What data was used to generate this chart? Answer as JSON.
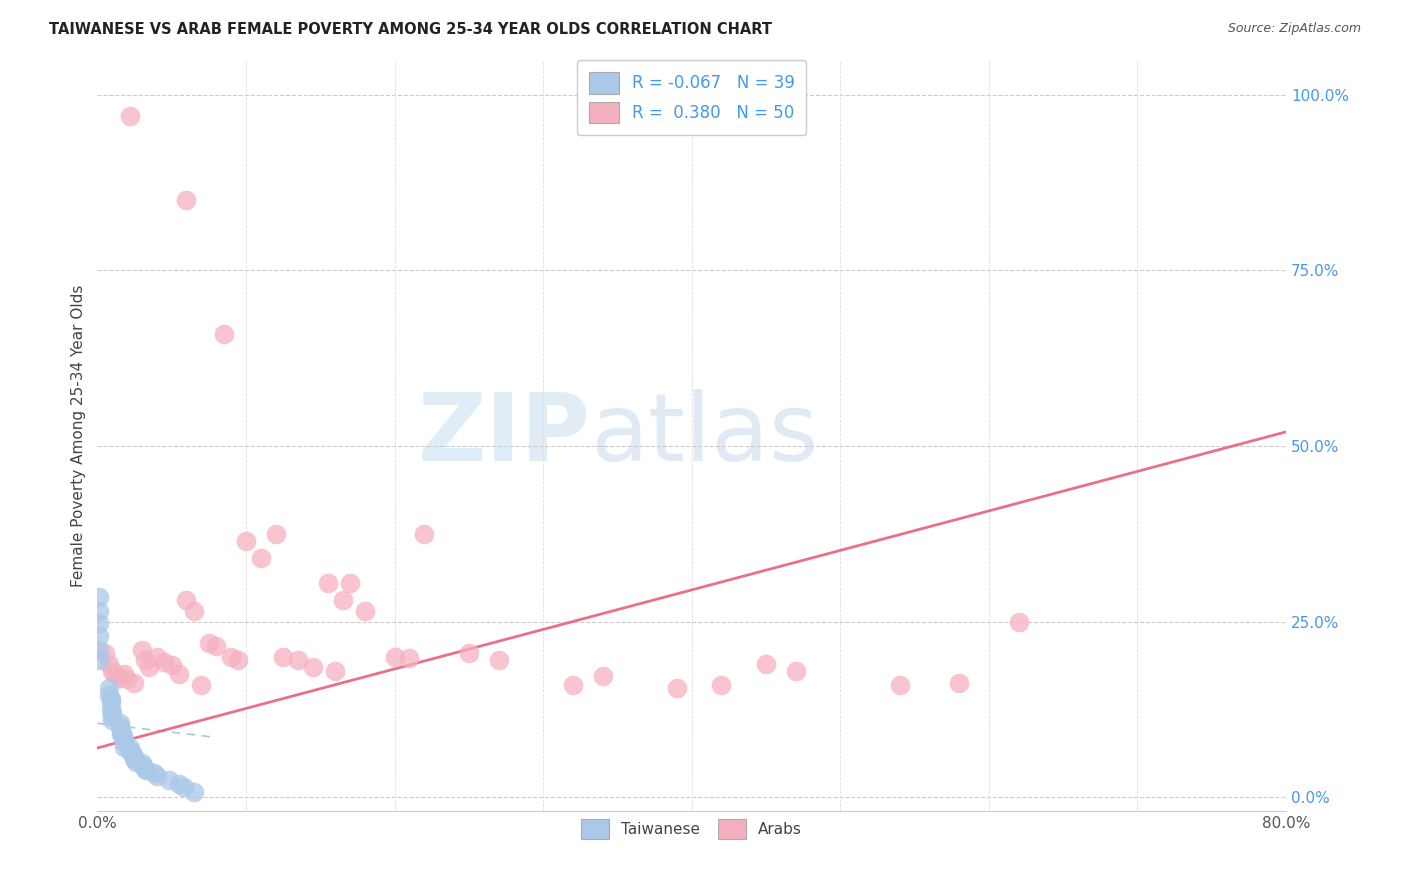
{
  "title": "TAIWANESE VS ARAB FEMALE POVERTY AMONG 25-34 YEAR OLDS CORRELATION CHART",
  "source": "Source: ZipAtlas.com",
  "ylabel": "Female Poverty Among 25-34 Year Olds",
  "xlim": [
    0.0,
    0.8
  ],
  "ylim": [
    -0.02,
    1.05
  ],
  "yticks_right": [
    0.0,
    0.25,
    0.5,
    0.75,
    1.0
  ],
  "yticklabels_right": [
    "0.0%",
    "25.0%",
    "50.0%",
    "75.0%",
    "100.0%"
  ],
  "watermark_zip": "ZIP",
  "watermark_atlas": "atlas",
  "taiwanese_R": -0.067,
  "taiwanese_N": 39,
  "arab_R": 0.38,
  "arab_N": 50,
  "taiwanese_color": "#aac8e8",
  "arab_color": "#f5b0c0",
  "taiwanese_line_color": "#99b8d8",
  "arab_line_color": "#e8607a",
  "legend_taiwanese_label": "Taiwanese",
  "legend_arab_label": "Arabs",
  "taiwanese_x": [
    0.001,
    0.001,
    0.001,
    0.001,
    0.001,
    0.001,
    0.008,
    0.008,
    0.009,
    0.009,
    0.009,
    0.01,
    0.01,
    0.01,
    0.015,
    0.015,
    0.016,
    0.016,
    0.017,
    0.018,
    0.018,
    0.018,
    0.022,
    0.022,
    0.023,
    0.024,
    0.025,
    0.025,
    0.026,
    0.03,
    0.031,
    0.032,
    0.033,
    0.038,
    0.04,
    0.048,
    0.055,
    0.058,
    0.065
  ],
  "taiwanese_y": [
    0.285,
    0.265,
    0.248,
    0.23,
    0.21,
    0.195,
    0.155,
    0.145,
    0.14,
    0.135,
    0.125,
    0.12,
    0.115,
    0.11,
    0.105,
    0.1,
    0.095,
    0.09,
    0.088,
    0.082,
    0.078,
    0.072,
    0.07,
    0.066,
    0.063,
    0.06,
    0.057,
    0.054,
    0.05,
    0.048,
    0.044,
    0.04,
    0.038,
    0.035,
    0.03,
    0.025,
    0.018,
    0.015,
    0.008
  ],
  "arab_x": [
    0.022,
    0.06,
    0.085,
    0.12,
    0.155,
    0.165,
    0.005,
    0.008,
    0.01,
    0.012,
    0.015,
    0.018,
    0.02,
    0.025,
    0.03,
    0.032,
    0.035,
    0.04,
    0.045,
    0.05,
    0.055,
    0.06,
    0.065,
    0.07,
    0.075,
    0.08,
    0.09,
    0.095,
    0.1,
    0.11,
    0.125,
    0.135,
    0.145,
    0.16,
    0.17,
    0.18,
    0.2,
    0.21,
    0.22,
    0.25,
    0.27,
    0.32,
    0.34,
    0.39,
    0.42,
    0.45,
    0.47,
    0.54,
    0.58,
    0.62
  ],
  "arab_y": [
    0.97,
    0.85,
    0.66,
    0.375,
    0.305,
    0.28,
    0.205,
    0.19,
    0.18,
    0.175,
    0.17,
    0.175,
    0.168,
    0.162,
    0.21,
    0.195,
    0.185,
    0.2,
    0.192,
    0.188,
    0.175,
    0.28,
    0.265,
    0.16,
    0.22,
    0.215,
    0.2,
    0.195,
    0.365,
    0.34,
    0.2,
    0.195,
    0.185,
    0.18,
    0.305,
    0.265,
    0.2,
    0.198,
    0.375,
    0.205,
    0.195,
    0.16,
    0.172,
    0.155,
    0.16,
    0.19,
    0.18,
    0.16,
    0.162,
    0.25
  ]
}
